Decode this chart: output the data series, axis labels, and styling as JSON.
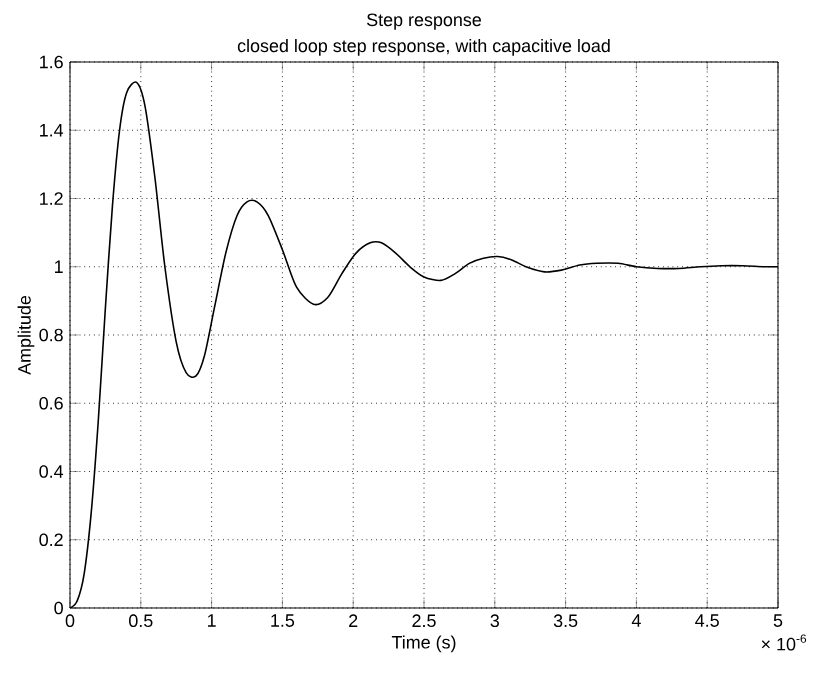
{
  "chart_data": {
    "type": "line",
    "title": "Step response",
    "subtitle": "closed loop step response, with capacitive load",
    "xlabel": "Time (s)",
    "ylabel": "Amplitude",
    "annotations": [
      "× 10$^{-6}$"
    ],
    "xlim": [
      0,
      5
    ],
    "ylim": [
      0,
      1.6
    ],
    "xticks": [
      0,
      0.5,
      1,
      1.5,
      2,
      2.5,
      3,
      3.5,
      4,
      4.5,
      5
    ],
    "yticks": [
      0,
      0.2,
      0.4,
      0.6,
      0.8,
      1,
      1.2,
      1.4,
      1.6
    ],
    "grid": true,
    "marker": "none",
    "line_style": "solid",
    "series": [
      {
        "color": "#000000",
        "x": [
          0,
          0.05,
          0.1,
          0.15,
          0.2,
          0.25,
          0.3,
          0.35,
          0.4,
          0.47,
          0.53,
          0.6,
          0.67,
          0.75,
          0.82,
          0.89,
          0.95,
          1.02,
          1.1,
          1.18,
          1.25,
          1.32,
          1.4,
          1.5,
          1.6,
          1.72,
          1.82,
          1.92,
          2.02,
          2.12,
          2.2,
          2.3,
          2.4,
          2.5,
          2.62,
          2.72,
          2.82,
          2.92,
          3.02,
          3.12,
          3.22,
          3.35,
          3.47,
          3.6,
          3.72,
          3.87,
          4.0,
          4.15,
          4.3,
          4.45,
          4.6,
          4.75,
          4.9,
          5.0
        ],
        "values": [
          0,
          0.02,
          0.1,
          0.28,
          0.55,
          0.88,
          1.18,
          1.4,
          1.51,
          1.54,
          1.47,
          1.26,
          1.0,
          0.78,
          0.69,
          0.68,
          0.74,
          0.88,
          1.04,
          1.15,
          1.19,
          1.19,
          1.15,
          1.05,
          0.94,
          0.89,
          0.91,
          0.98,
          1.04,
          1.07,
          1.07,
          1.04,
          1.0,
          0.97,
          0.96,
          0.98,
          1.01,
          1.025,
          1.03,
          1.02,
          1.0,
          0.985,
          0.99,
          1.005,
          1.01,
          1.01,
          1.0,
          0.995,
          0.995,
          1.0,
          1.003,
          1.003,
          1.0,
          1.0
        ]
      }
    ]
  }
}
